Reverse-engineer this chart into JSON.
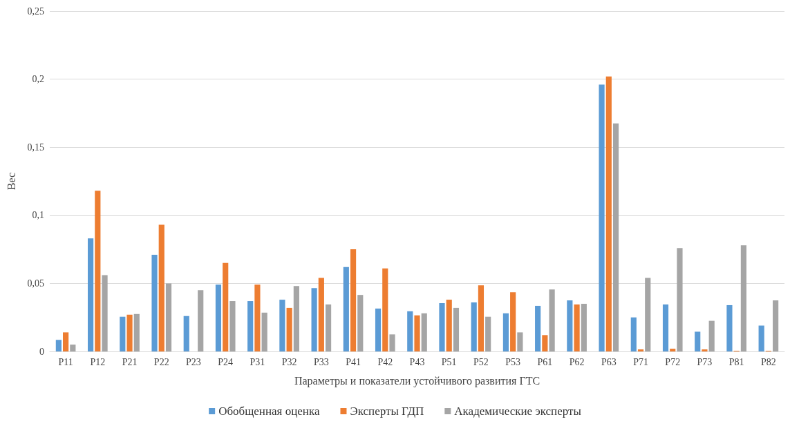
{
  "chart_data": {
    "type": "bar",
    "xlabel": "Параметры и показатели устойчивого развития ГТС",
    "ylabel": "Вес",
    "categories": [
      "P11",
      "P12",
      "P21",
      "P22",
      "P23",
      "P24",
      "P31",
      "P32",
      "P33",
      "P41",
      "P42",
      "P43",
      "P51",
      "P52",
      "P53",
      "P61",
      "P62",
      "P63",
      "P71",
      "P72",
      "P73",
      "P81",
      "P82"
    ],
    "series": [
      {
        "name": "Обобщенная оценка",
        "color": "#5b9bd5",
        "values": [
          0.0085,
          0.083,
          0.0255,
          0.071,
          0.026,
          0.049,
          0.037,
          0.038,
          0.0465,
          0.062,
          0.0315,
          0.0295,
          0.0355,
          0.036,
          0.028,
          0.0335,
          0.0375,
          0.196,
          0.025,
          0.0345,
          0.0145,
          0.034,
          0.019
        ]
      },
      {
        "name": "Эксперты ГДП",
        "color": "#ed7d31",
        "values": [
          0.014,
          0.118,
          0.027,
          0.093,
          0,
          0.065,
          0.049,
          0.032,
          0.054,
          0.075,
          0.061,
          0.0265,
          0.038,
          0.0485,
          0.0435,
          0.012,
          0.0345,
          0.202,
          0.0015,
          0.002,
          0.0015,
          0.0005,
          0.0005
        ]
      },
      {
        "name": "Академические эксперты",
        "color": "#a5a5a5",
        "values": [
          0.005,
          0.056,
          0.0275,
          0.05,
          0.045,
          0.037,
          0.0285,
          0.048,
          0.0345,
          0.0415,
          0.0125,
          0.028,
          0.032,
          0.0255,
          0.014,
          0.0455,
          0.035,
          0.1675,
          0.054,
          0.076,
          0.0225,
          0.078,
          0.0375
        ]
      }
    ],
    "ylim": [
      0,
      0.25
    ],
    "yticks": [
      0,
      {
        "value": 0.05,
        "label": "0,05"
      },
      {
        "value": 0.1,
        "label": "0,1"
      },
      {
        "value": 0.15,
        "label": "0,15"
      },
      {
        "value": 0.2,
        "label": "0,2"
      },
      {
        "value": 0.25,
        "label": "0,25"
      }
    ],
    "grid": "y",
    "legend": "bottom"
  }
}
